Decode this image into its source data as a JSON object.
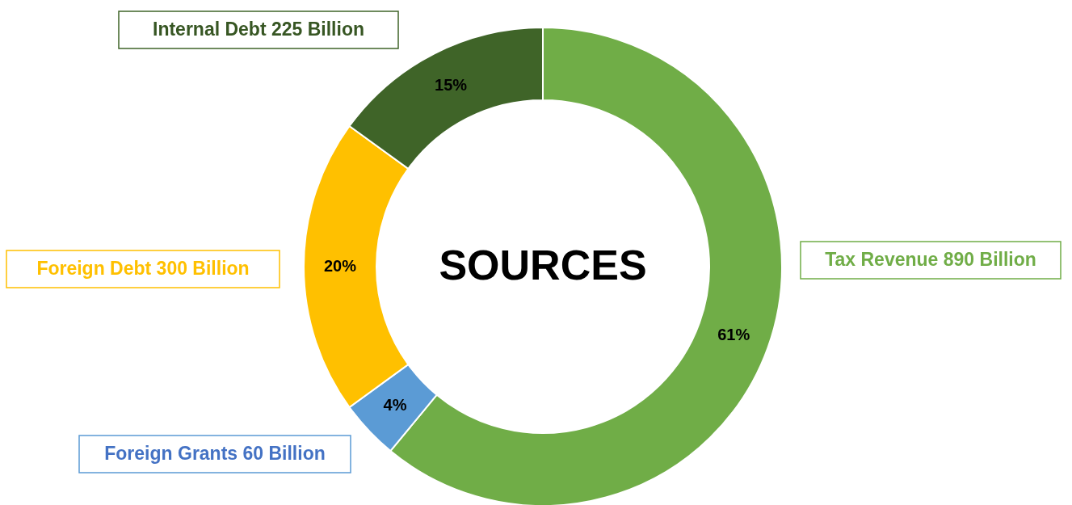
{
  "chart_data": {
    "type": "donut",
    "title": "SOURCES",
    "categories": [
      "Tax Revenue 890 Billion",
      "Foreign Grants 60 Billion",
      "Foreign Debt 300 Billion",
      "Internal Debt 225 Billion"
    ],
    "values": [
      61,
      4,
      20,
      15
    ],
    "colors": [
      "#70ad47",
      "#5b9bd5",
      "#ffc000",
      "#3f6428"
    ],
    "value_labels": [
      "61%",
      "4%",
      "20%",
      "15%"
    ]
  }
}
